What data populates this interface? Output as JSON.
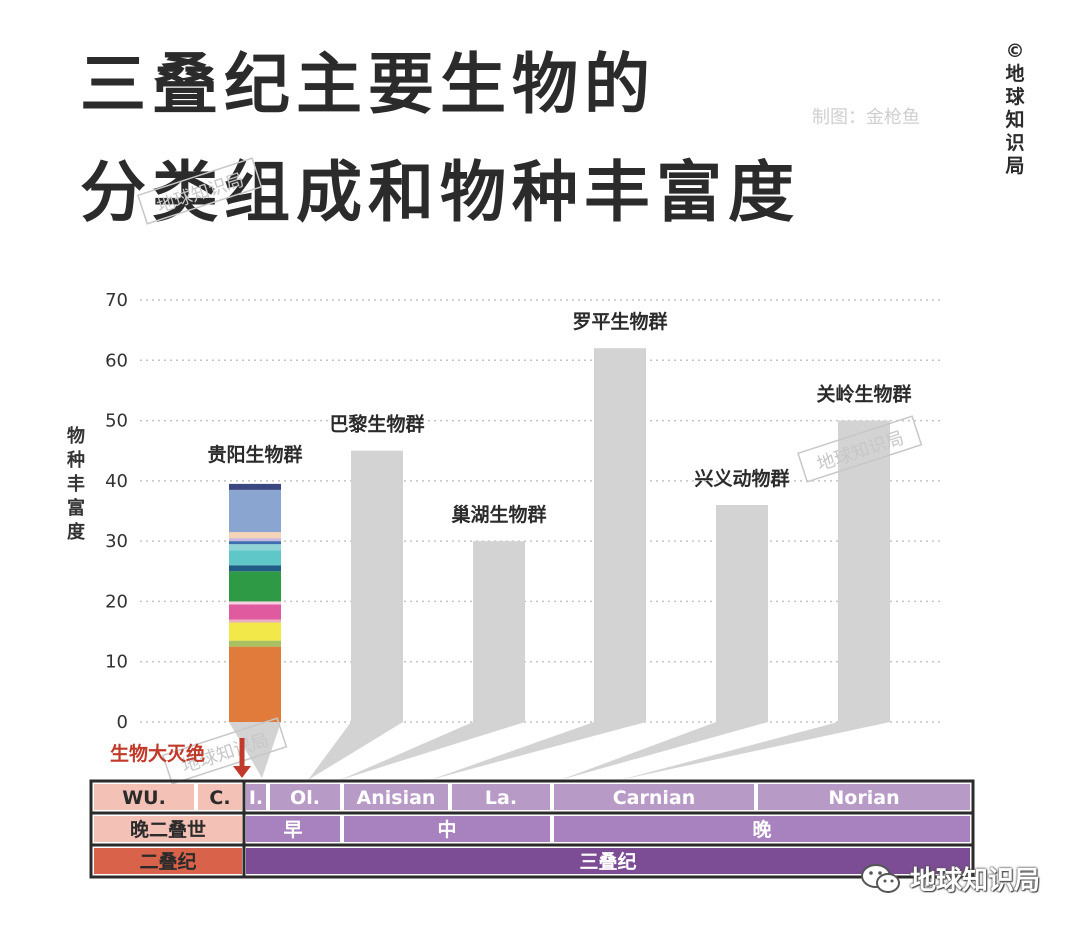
{
  "title_line1": "三叠纪主要生物的",
  "title_line2": "分类组成和物种丰富度",
  "credit": "制图：金枪鱼",
  "copyright": "©地球知识局",
  "brand": "地球知识局",
  "brand_icon": "wechat-icon",
  "watermark": "地球知识局",
  "extinction_label": "生物大灭绝",
  "colors": {
    "bar": "#d3d3d3",
    "title": "#2b2b2b",
    "extinction": "#c0392b",
    "permian_stage": "#f3c1b6",
    "permian_period": "#d9624a",
    "triassic_stage": "#b89ac7",
    "triassic_epoch": "#a882bf",
    "triassic_period": "#7c4d94"
  },
  "chart_data": {
    "type": "bar",
    "ylabel": "物种丰富度",
    "ylim": [
      0,
      70
    ],
    "yticks": [
      0,
      10,
      20,
      30,
      40,
      50,
      60,
      70
    ],
    "grid": true,
    "categories": [
      "贵阳生物群",
      "巴黎生物群",
      "巢湖生物群",
      "罗平生物群",
      "兴义动物群",
      "关岭生物群"
    ],
    "values": [
      40,
      45,
      30,
      62,
      36,
      50
    ],
    "stacked_composition": {
      "category": "贵阳生物群",
      "segments": [
        {
          "value": 12.5,
          "color": "#e07b3c"
        },
        {
          "value": 1.0,
          "color": "#a8c060"
        },
        {
          "value": 3.0,
          "color": "#f2e84a"
        },
        {
          "value": 0.5,
          "color": "#e8b0c0"
        },
        {
          "value": 2.5,
          "color": "#e05aa0"
        },
        {
          "value": 0.5,
          "color": "#f5d0e0"
        },
        {
          "value": 5.0,
          "color": "#2e9a45"
        },
        {
          "value": 1.0,
          "color": "#1f5c86"
        },
        {
          "value": 2.5,
          "color": "#5fc7c7"
        },
        {
          "value": 1.0,
          "color": "#8fd3d6"
        },
        {
          "value": 0.5,
          "color": "#3d6fb0"
        },
        {
          "value": 0.5,
          "color": "#c8b8e0"
        },
        {
          "value": 1.0,
          "color": "#f4d3b6"
        },
        {
          "value": 7.0,
          "color": "#8aa6d0"
        },
        {
          "value": 1.0,
          "color": "#3a4780"
        }
      ]
    },
    "timescale": {
      "stages": [
        "WU.",
        "C.",
        "I.",
        "Ol.",
        "Anisian",
        "La.",
        "Carnian",
        "Norian"
      ],
      "epochs": [
        "晚二叠世",
        "早",
        "中",
        "晚"
      ],
      "periods": [
        "二叠纪",
        "三叠纪"
      ]
    }
  }
}
